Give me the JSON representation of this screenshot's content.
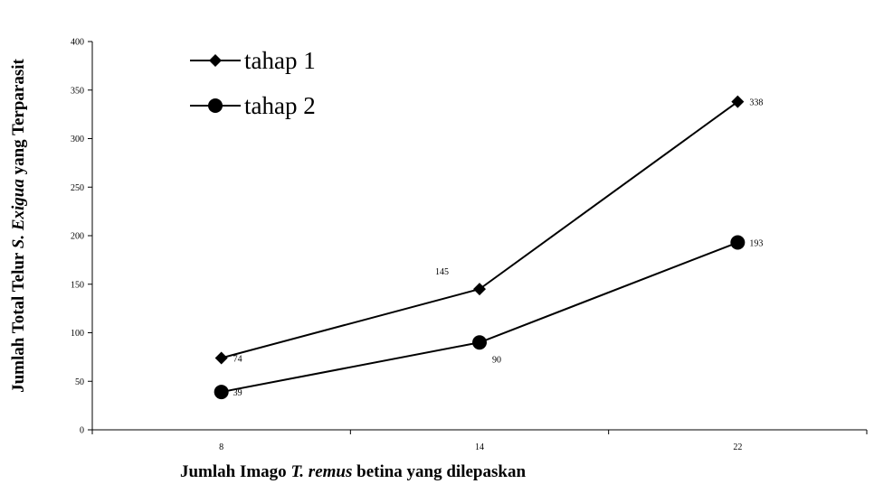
{
  "chart_data": {
    "type": "line",
    "categories": [
      "8",
      "14",
      "22"
    ],
    "series": [
      {
        "name": "tahap 1",
        "marker": "diamond",
        "values": [
          74,
          145,
          338
        ]
      },
      {
        "name": "tahap 2",
        "marker": "circle",
        "values": [
          39,
          90,
          193
        ]
      }
    ],
    "xlabel": {
      "prefix": "Jumlah Imago ",
      "italic": "T. remus",
      "suffix": " betina yang dilepaskan"
    },
    "ylabel": {
      "prefix": "Jumlah Total Telur ",
      "italic": "S. Exigua",
      "suffix": " yang Terparasit"
    },
    "ylim": [
      0,
      400
    ],
    "yticks": [
      "0",
      "50",
      "100",
      "150",
      "200",
      "250",
      "300",
      "350",
      "400"
    ],
    "grid": false,
    "legend_position": "top-left",
    "line_color": "#000000"
  }
}
